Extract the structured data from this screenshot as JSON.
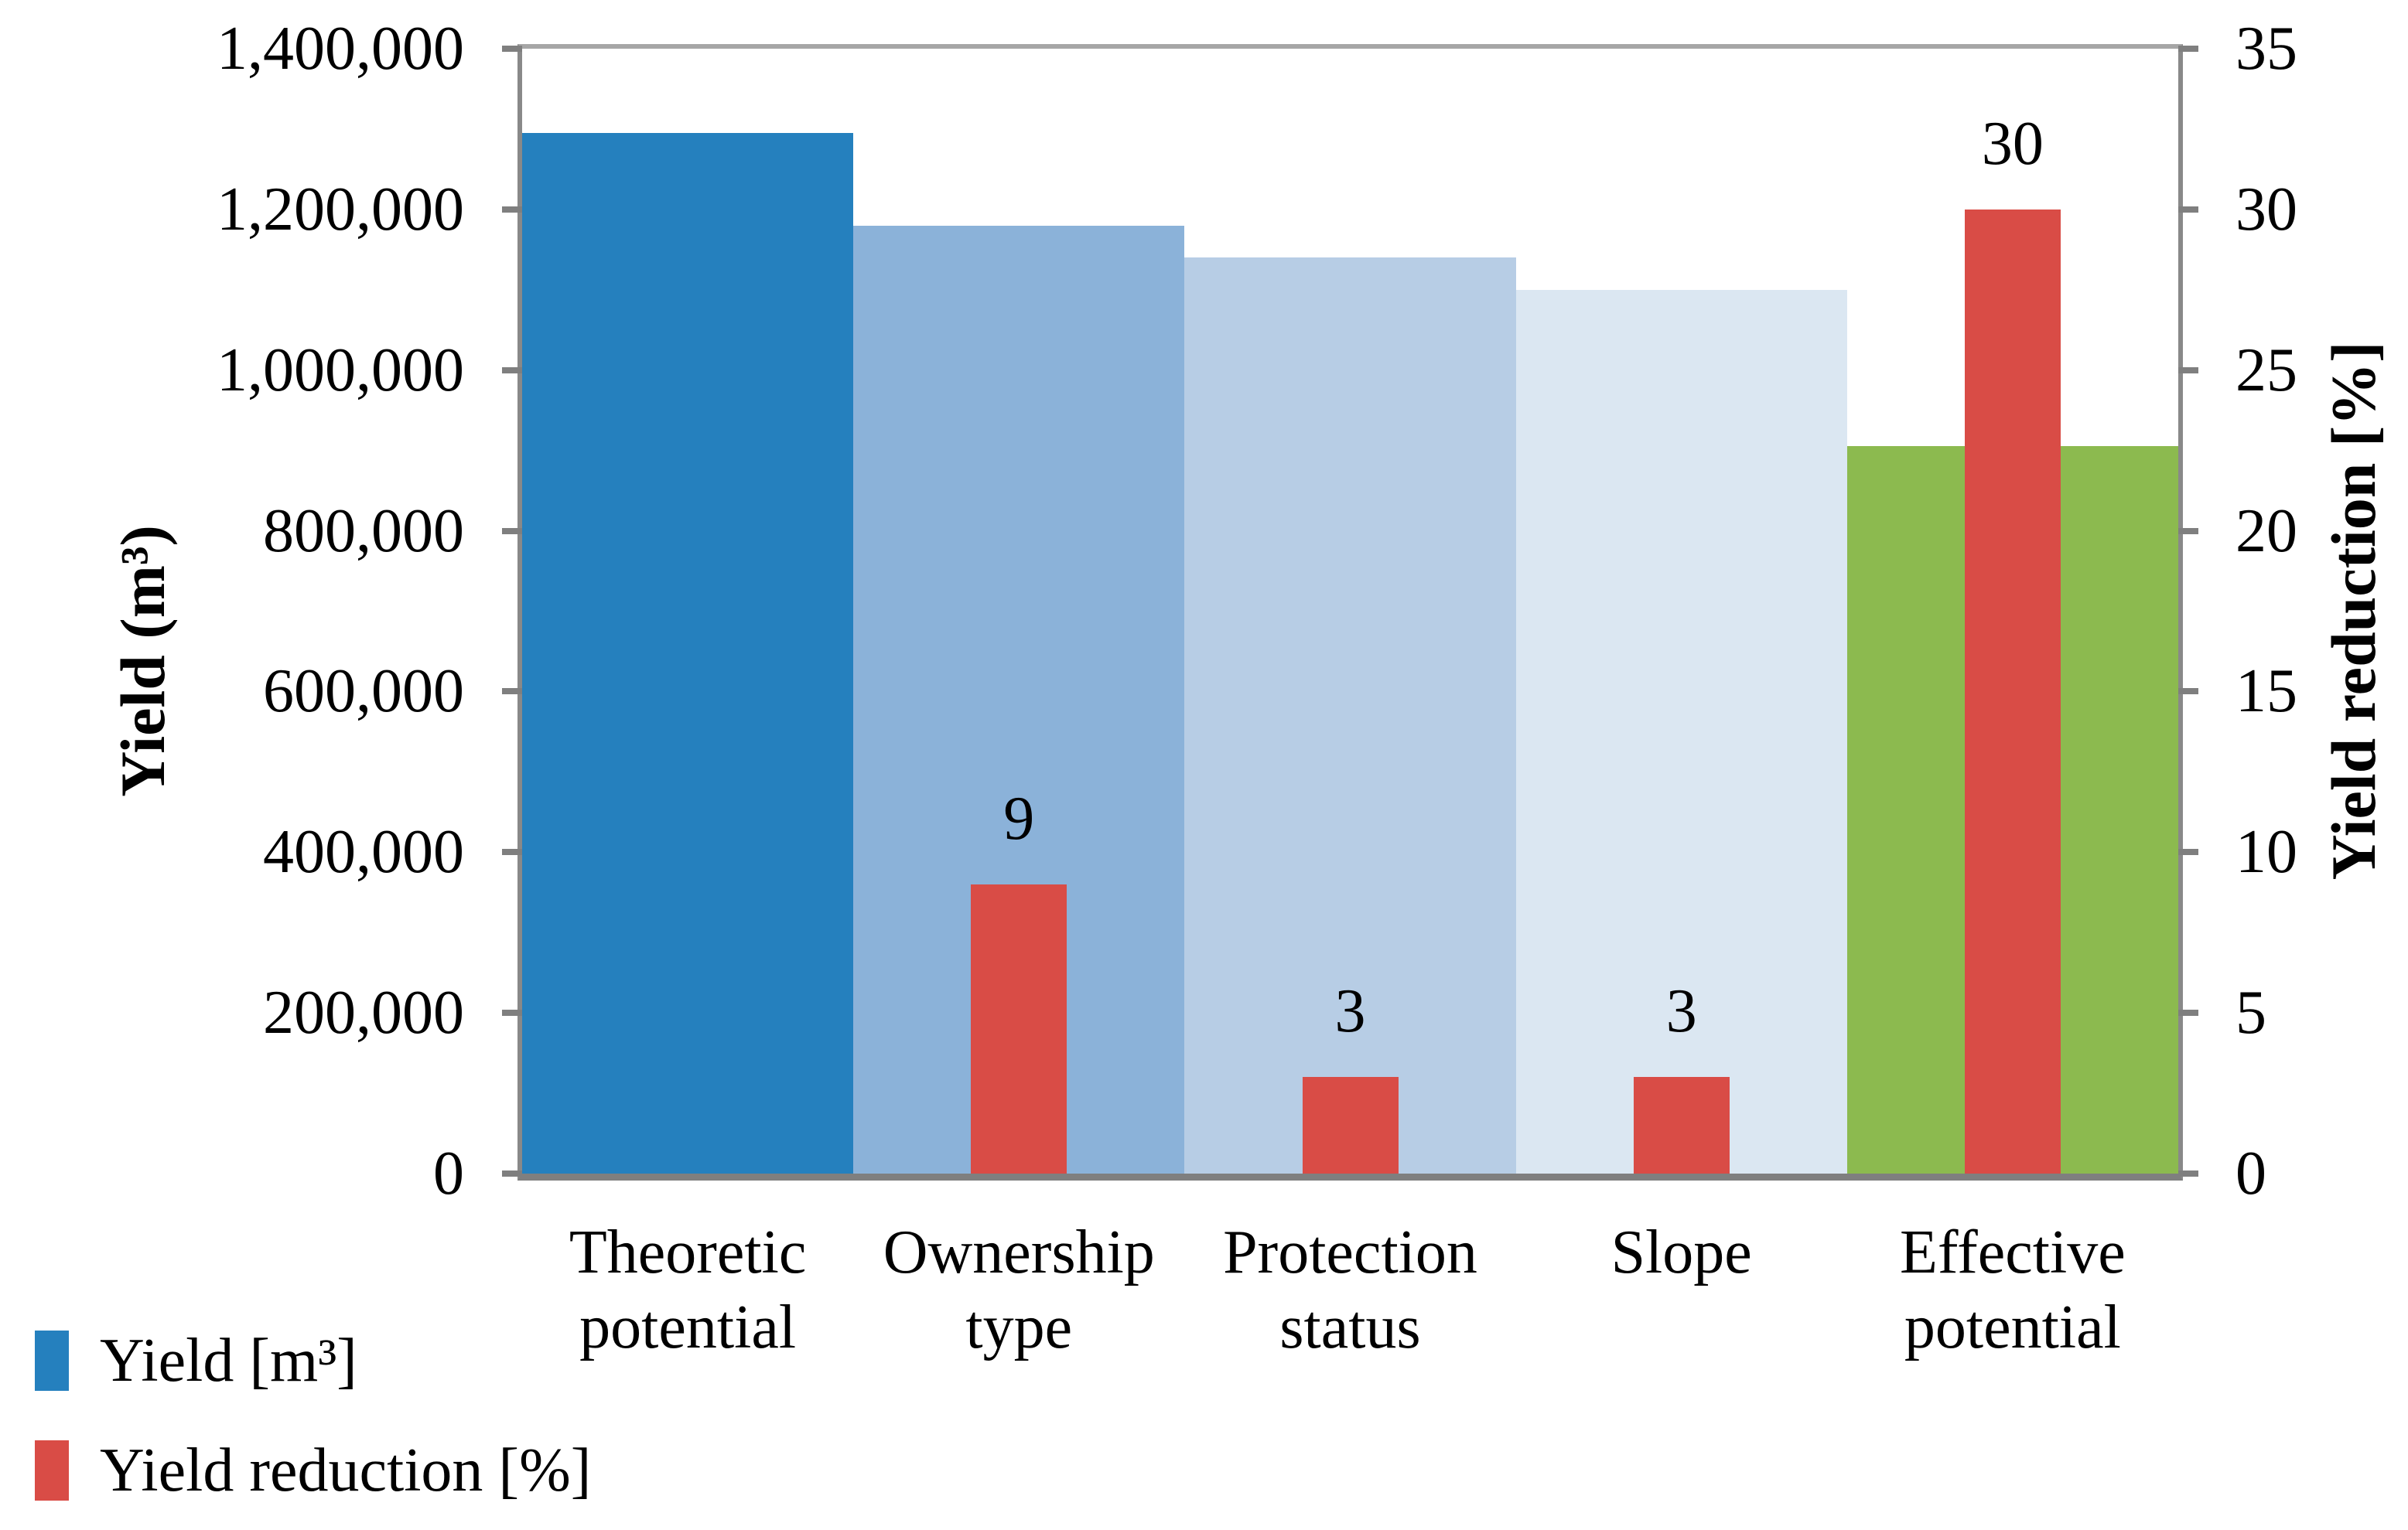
{
  "chart_data": {
    "type": "bar",
    "title": "",
    "categories": [
      "Theoretic potential",
      "Ownership type",
      "Protection status",
      "Slope",
      "Effective potential"
    ],
    "category_lines": [
      [
        "Theoretic",
        "potential"
      ],
      [
        "Ownership",
        "type"
      ],
      [
        "Protection",
        "status"
      ],
      [
        "Slope"
      ],
      [
        "Effective",
        "potential"
      ]
    ],
    "series": [
      {
        "name": "Yield [m³]",
        "axis": "left",
        "values": [
          1295000,
          1180000,
          1140000,
          1100000,
          905000
        ],
        "bar_colors": [
          "#2580BE",
          "#8BB2D9",
          "#B7CDE5",
          "#DBE7F2",
          "#8CBA4F"
        ]
      },
      {
        "name": "Yield reduction [%]",
        "axis": "right",
        "values": [
          null,
          9,
          3,
          3,
          30
        ],
        "data_labels": [
          "",
          "9",
          "3",
          "3",
          "30"
        ],
        "color": "#D94C46"
      }
    ],
    "left_axis": {
      "label": "Yield (m³)",
      "min": 0,
      "max": 1400000,
      "tick_step": 200000,
      "tick_labels": [
        "1,400,000",
        "1,200,000",
        "1,000,000",
        "800,000",
        "600,000",
        "400,000",
        "200,000",
        "0"
      ]
    },
    "right_axis": {
      "label": "Yield reduction [%]",
      "min": 0,
      "max": 35,
      "tick_step": 5,
      "tick_labels": [
        "35",
        "30",
        "25",
        "20",
        "15",
        "10",
        "5",
        "0"
      ]
    },
    "legend": {
      "position": "bottom-left",
      "entries": [
        {
          "label": "Yield [m³]",
          "color": "#2580BE"
        },
        {
          "label": "Yield reduction [%]",
          "color": "#D94C46"
        }
      ]
    },
    "grid": false
  },
  "style_colors": {
    "plot_border_top": "#A6A6A6",
    "plot_border_sides": "#898989",
    "plot_border_bottom": "#7F7F7F",
    "tick_mark": "#7F7F7F",
    "text": "#000000",
    "background": "#FFFFFF"
  }
}
